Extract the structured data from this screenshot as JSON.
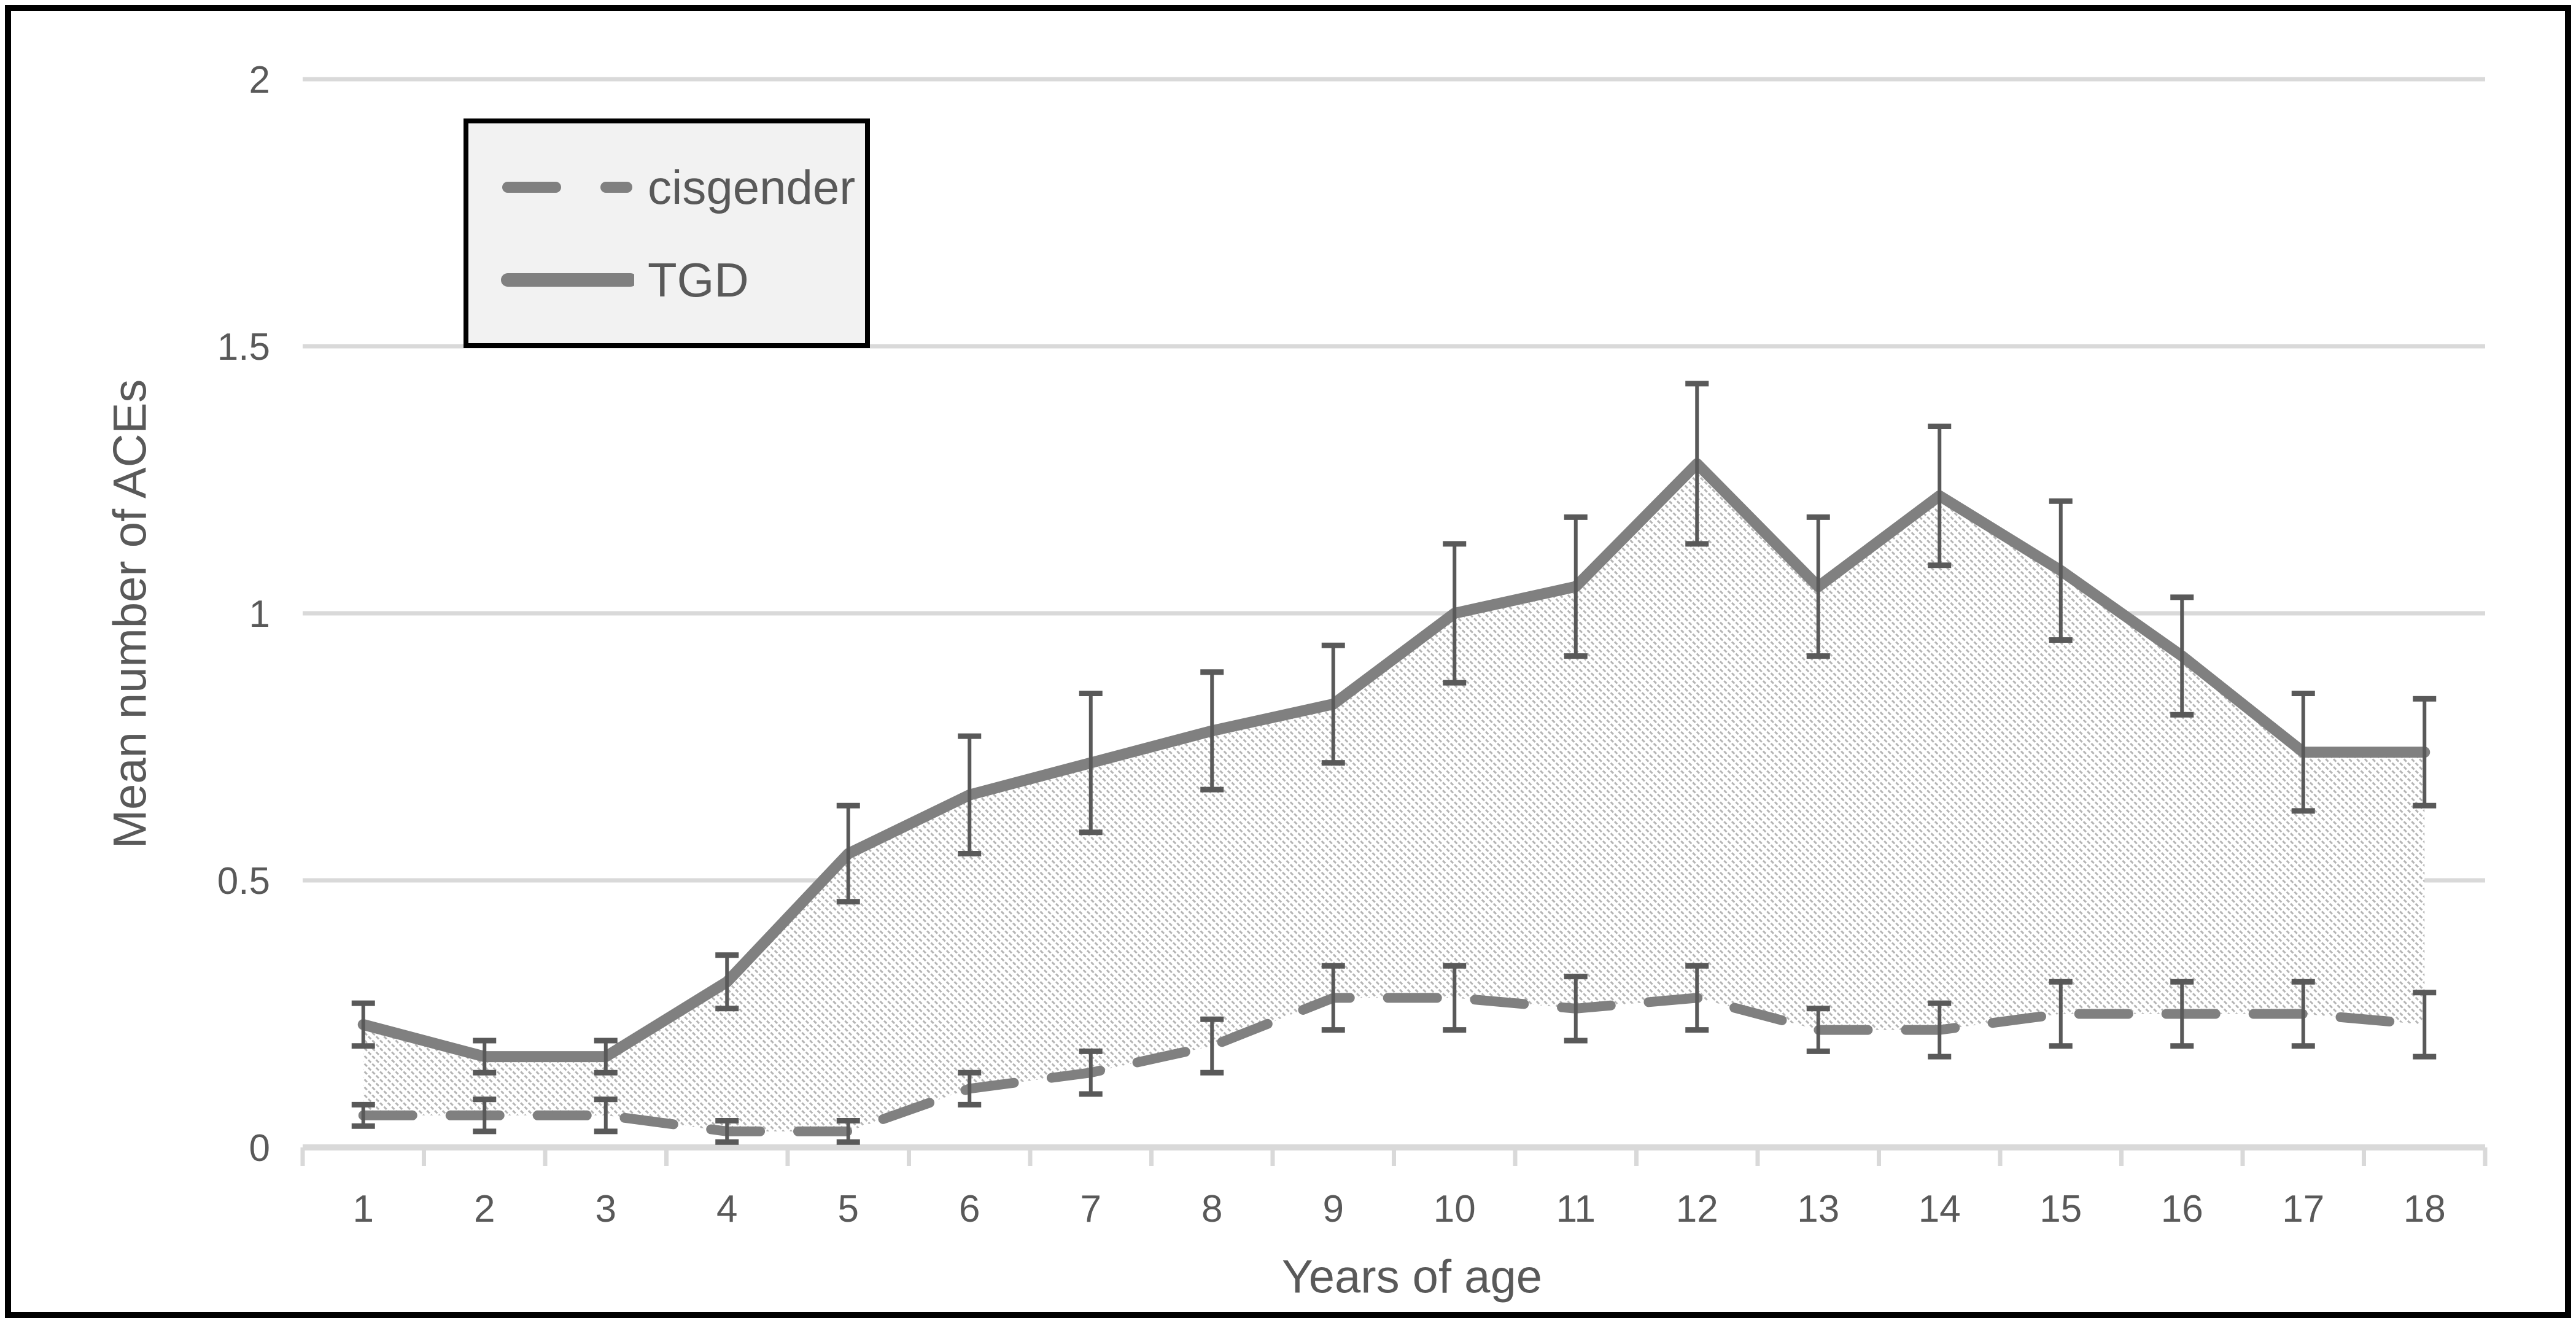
{
  "chart_data": {
    "type": "line",
    "title": "",
    "xlabel": "Years of age",
    "ylabel": "Mean number of ACEs",
    "categories": [
      "1",
      "2",
      "3",
      "4",
      "5",
      "6",
      "7",
      "8",
      "9",
      "10",
      "11",
      "12",
      "13",
      "14",
      "15",
      "16",
      "17",
      "18"
    ],
    "ylim": [
      0,
      2
    ],
    "yticks": [
      {
        "value": 0,
        "label": "0"
      },
      {
        "value": 0.5,
        "label": "0.5"
      },
      {
        "value": 1,
        "label": "1"
      },
      {
        "value": 1.5,
        "label": "1.5"
      },
      {
        "value": 2,
        "label": "2"
      }
    ],
    "grid": "horizontal",
    "legend_position": "top-left-inset",
    "shaded_area": "hatched gap between TGD and cisgender lines",
    "series": [
      {
        "name": "cisgender",
        "style": "dashed",
        "values": [
          0.06,
          0.06,
          0.06,
          0.03,
          0.03,
          0.11,
          0.14,
          0.19,
          0.28,
          0.28,
          0.26,
          0.28,
          0.22,
          0.22,
          0.25,
          0.25,
          0.25,
          0.23
        ],
        "error": [
          0.02,
          0.03,
          0.03,
          0.02,
          0.02,
          0.03,
          0.04,
          0.05,
          0.06,
          0.06,
          0.06,
          0.06,
          0.04,
          0.05,
          0.06,
          0.06,
          0.06,
          0.06
        ]
      },
      {
        "name": "TGD",
        "style": "solid",
        "values": [
          0.23,
          0.17,
          0.17,
          0.31,
          0.55,
          0.66,
          0.72,
          0.78,
          0.83,
          1.0,
          1.05,
          1.28,
          1.05,
          1.22,
          1.08,
          0.92,
          0.74,
          0.74
        ],
        "error": [
          0.04,
          0.03,
          0.03,
          0.05,
          0.09,
          0.11,
          0.13,
          0.11,
          0.11,
          0.13,
          0.13,
          0.15,
          0.13,
          0.13,
          0.13,
          0.11,
          0.11,
          0.1
        ]
      }
    ],
    "legend": {
      "items": [
        {
          "label": "cisgender",
          "style": "dashed"
        },
        {
          "label": "TGD",
          "style": "solid"
        }
      ]
    },
    "colors": {
      "series_line": "#808080",
      "error_bar": "#595959",
      "gridline": "#d9d9d9",
      "axis_line": "#d9d9d9",
      "axis_text": "#595959",
      "hatch": "#b5b5b5",
      "legend_bg": "#f2f2f2",
      "border": "#000000"
    }
  }
}
